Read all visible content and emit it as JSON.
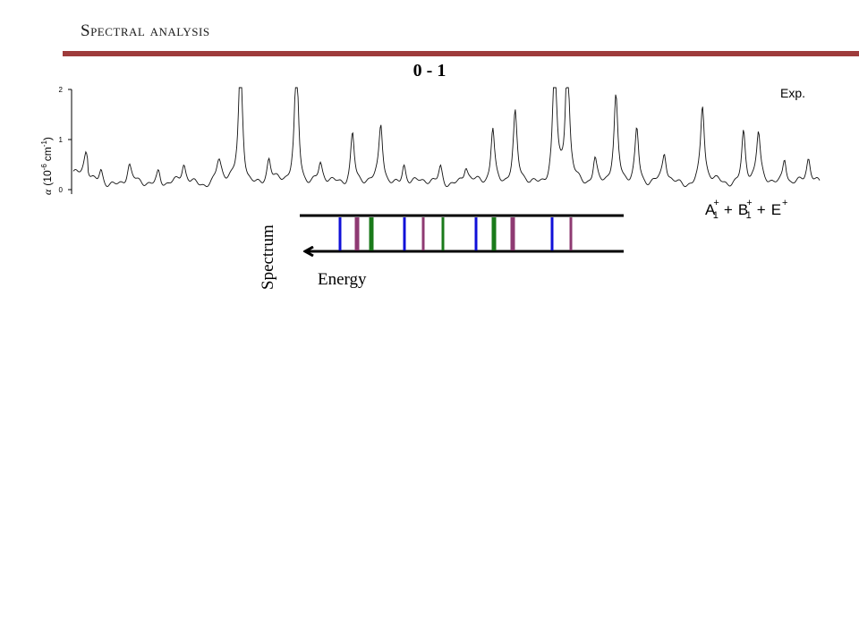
{
  "slide": {
    "title": "Spectral analysis",
    "panel_label": "0 - 1"
  },
  "experimental_spectrum": {
    "legend_label": "Exp.",
    "y_axis_label_symbol": "α",
    "y_axis_label_rest": "(10",
    "y_axis_label_exp": "-6",
    "y_axis_label_unit": "cm",
    "y_axis_label_unit_exp": "-1",
    "y_axis_label_close": ")",
    "y_ticks": [
      "0",
      "1",
      "2"
    ],
    "y_range": [
      0,
      2
    ],
    "peaks": [
      {
        "x": 0.017,
        "h": 0.42,
        "w": 0.003
      },
      {
        "x": 0.037,
        "h": 0.3,
        "w": 0.003
      },
      {
        "x": 0.075,
        "h": 0.32,
        "w": 0.003
      },
      {
        "x": 0.114,
        "h": 0.28,
        "w": 0.003
      },
      {
        "x": 0.148,
        "h": 0.33,
        "w": 0.003
      },
      {
        "x": 0.195,
        "h": 0.45,
        "w": 0.004
      },
      {
        "x": 0.224,
        "h": 2.6,
        "w": 0.003
      },
      {
        "x": 0.262,
        "h": 0.45,
        "w": 0.003
      },
      {
        "x": 0.299,
        "h": 2.6,
        "w": 0.003
      },
      {
        "x": 0.331,
        "h": 0.35,
        "w": 0.003
      },
      {
        "x": 0.374,
        "h": 1.05,
        "w": 0.003
      },
      {
        "x": 0.412,
        "h": 1.15,
        "w": 0.003
      },
      {
        "x": 0.443,
        "h": 0.4,
        "w": 0.003
      },
      {
        "x": 0.492,
        "h": 0.36,
        "w": 0.003
      },
      {
        "x": 0.526,
        "h": 0.3,
        "w": 0.003
      },
      {
        "x": 0.562,
        "h": 1.15,
        "w": 0.003
      },
      {
        "x": 0.592,
        "h": 1.35,
        "w": 0.003
      },
      {
        "x": 0.645,
        "h": 2.6,
        "w": 0.003
      },
      {
        "x": 0.662,
        "h": 2.6,
        "w": 0.003
      },
      {
        "x": 0.699,
        "h": 0.5,
        "w": 0.003
      },
      {
        "x": 0.727,
        "h": 1.65,
        "w": 0.003
      },
      {
        "x": 0.755,
        "h": 1.12,
        "w": 0.003
      },
      {
        "x": 0.792,
        "h": 0.55,
        "w": 0.003
      },
      {
        "x": 0.843,
        "h": 1.55,
        "w": 0.003
      },
      {
        "x": 0.898,
        "h": 1.05,
        "w": 0.003
      },
      {
        "x": 0.918,
        "h": 0.95,
        "w": 0.003
      },
      {
        "x": 0.953,
        "h": 0.55,
        "w": 0.003
      },
      {
        "x": 0.985,
        "h": 0.45,
        "w": 0.003
      }
    ]
  },
  "symmetry_label": {
    "A": "A",
    "A_sub": "1",
    "A_sup": "+",
    "plus1": "+",
    "B": "B",
    "B_sub": "1",
    "B_sup": "+",
    "plus2": "+",
    "E": "E",
    "E_sup": "+"
  },
  "stick_spectrum": {
    "vertical_label": "Spectrum",
    "energy_label": "Energy",
    "colors": {
      "blue": "#1010d8",
      "purple": "#8e3a72",
      "green": "#1a7a1a"
    },
    "lines": [
      {
        "color": "blue",
        "weight": "thin"
      },
      {
        "color": "purple",
        "weight": "thick"
      },
      {
        "color": "green",
        "weight": "thick"
      },
      {
        "color": "blue",
        "weight": "thin"
      },
      {
        "color": "purple",
        "weight": "thin"
      },
      {
        "color": "green",
        "weight": "thin"
      },
      {
        "color": "blue",
        "weight": "thin"
      },
      {
        "color": "green",
        "weight": "thick"
      },
      {
        "color": "purple",
        "weight": "thick"
      },
      {
        "color": "blue",
        "weight": "thin"
      },
      {
        "color": "purple",
        "weight": "thin"
      }
    ]
  }
}
